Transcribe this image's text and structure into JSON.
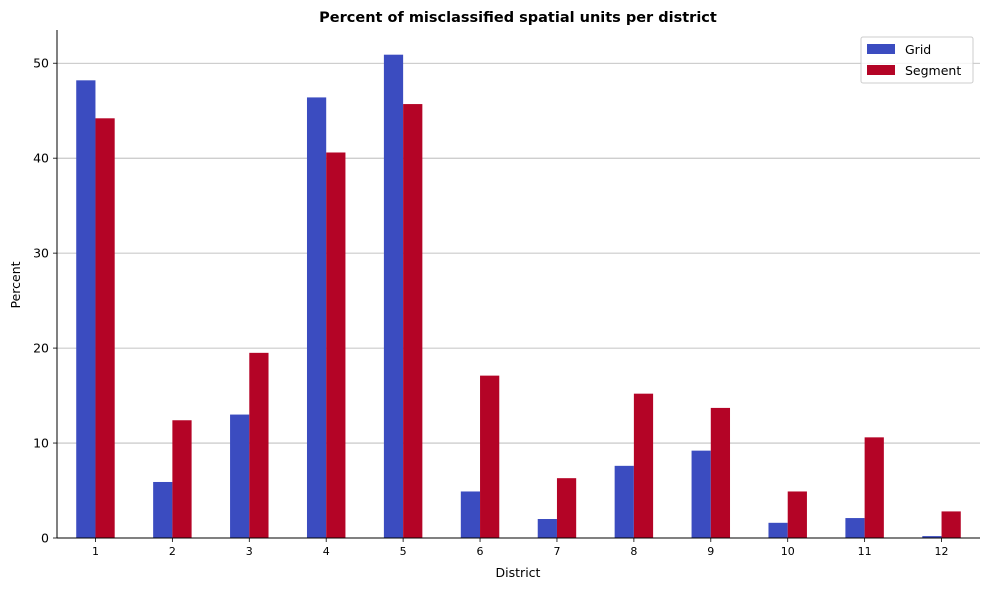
{
  "chart_data": {
    "type": "bar",
    "title": "Percent of misclassified spatial units per district",
    "xlabel": "District",
    "ylabel": "Percent",
    "categories": [
      "1",
      "2",
      "3",
      "4",
      "5",
      "6",
      "7",
      "8",
      "9",
      "10",
      "11",
      "12"
    ],
    "series": [
      {
        "name": "Grid",
        "color": "#3b4cc0",
        "values": [
          48.2,
          5.9,
          13.0,
          46.4,
          50.9,
          4.9,
          2.0,
          7.6,
          9.2,
          1.6,
          2.1,
          0.2
        ]
      },
      {
        "name": "Segment",
        "color": "#b40426",
        "values": [
          44.2,
          12.4,
          19.5,
          40.6,
          45.7,
          17.1,
          6.3,
          15.2,
          13.7,
          4.9,
          10.6,
          2.8
        ]
      }
    ],
    "ylim": [
      0,
      53.5
    ],
    "yticks": [
      0,
      10,
      20,
      30,
      40,
      50
    ],
    "grid": "horizontal",
    "legend": "top-right"
  }
}
